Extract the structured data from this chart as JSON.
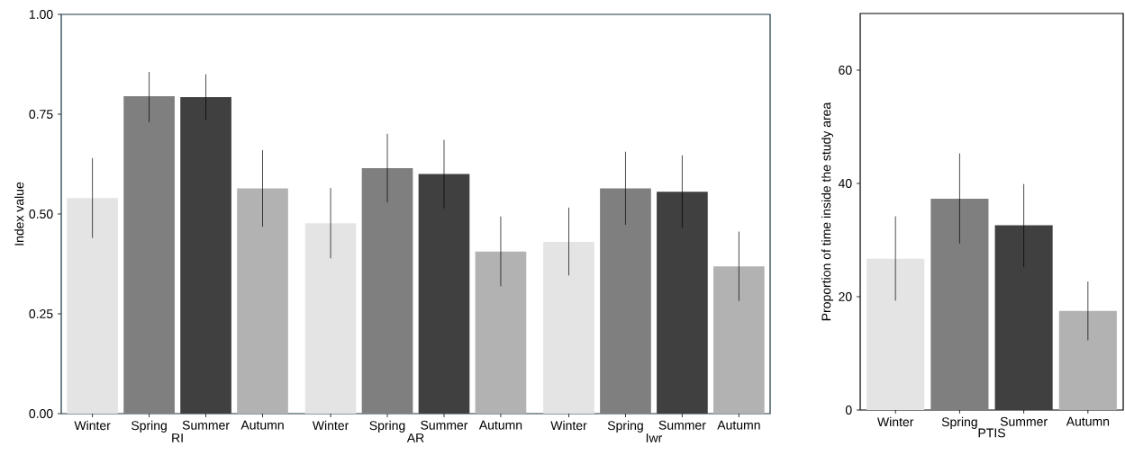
{
  "chart_data": [
    {
      "type": "bar",
      "ylabel": "Index value",
      "categories": [
        "Winter",
        "Spring",
        "Summer",
        "Autumn",
        "Winter",
        "Spring",
        "Summer",
        "Autumn",
        "Winter",
        "Spring",
        "Summer",
        "Autumn"
      ],
      "values": [
        0.54,
        0.795,
        0.793,
        0.564,
        0.477,
        0.615,
        0.6,
        0.406,
        0.43,
        0.564,
        0.556,
        0.369
      ],
      "errors": [
        [
          0.44,
          0.64
        ],
        [
          0.73,
          0.856
        ],
        [
          0.735,
          0.85
        ],
        [
          0.468,
          0.66
        ],
        [
          0.389,
          0.565
        ],
        [
          0.529,
          0.701
        ],
        [
          0.514,
          0.686
        ],
        [
          0.319,
          0.494
        ],
        [
          0.346,
          0.516
        ],
        [
          0.473,
          0.656
        ],
        [
          0.466,
          0.647
        ],
        [
          0.282,
          0.456
        ]
      ],
      "colors": [
        "#e4e4e4",
        "#7f7f7f",
        "#404040",
        "#b2b2b2",
        "#e4e4e4",
        "#7f7f7f",
        "#404040",
        "#b2b2b2",
        "#e4e4e4",
        "#7f7f7f",
        "#404040",
        "#b2b2b2"
      ],
      "annotations": [
        "RI",
        "AR",
        "Iwr"
      ],
      "ylim": [
        0,
        1
      ],
      "yticks": [
        {
          "value": 0,
          "label": "0.00"
        },
        {
          "value": 0.25,
          "label": "0.25"
        },
        {
          "value": 0.5,
          "label": "0.50"
        },
        {
          "value": 0.75,
          "label": "0.75"
        },
        {
          "value": 1,
          "label": "1.00"
        }
      ]
    },
    {
      "type": "bar",
      "ylabel": "Proportion of time inside the study area",
      "xlabel": "PTIS",
      "categories": [
        "Winter",
        "Spring",
        "Summer",
        "Autumn"
      ],
      "values": [
        26.7,
        37.3,
        32.6,
        17.5
      ],
      "errors": [
        [
          19.3,
          34.2
        ],
        [
          29.4,
          45.3
        ],
        [
          25.2,
          39.9
        ],
        [
          12.3,
          22.7
        ]
      ],
      "colors": [
        "#e4e4e4",
        "#7f7f7f",
        "#404040",
        "#b2b2b2"
      ],
      "ylim": [
        0,
        70
      ],
      "yticks": [
        0,
        20,
        40,
        60
      ]
    }
  ]
}
